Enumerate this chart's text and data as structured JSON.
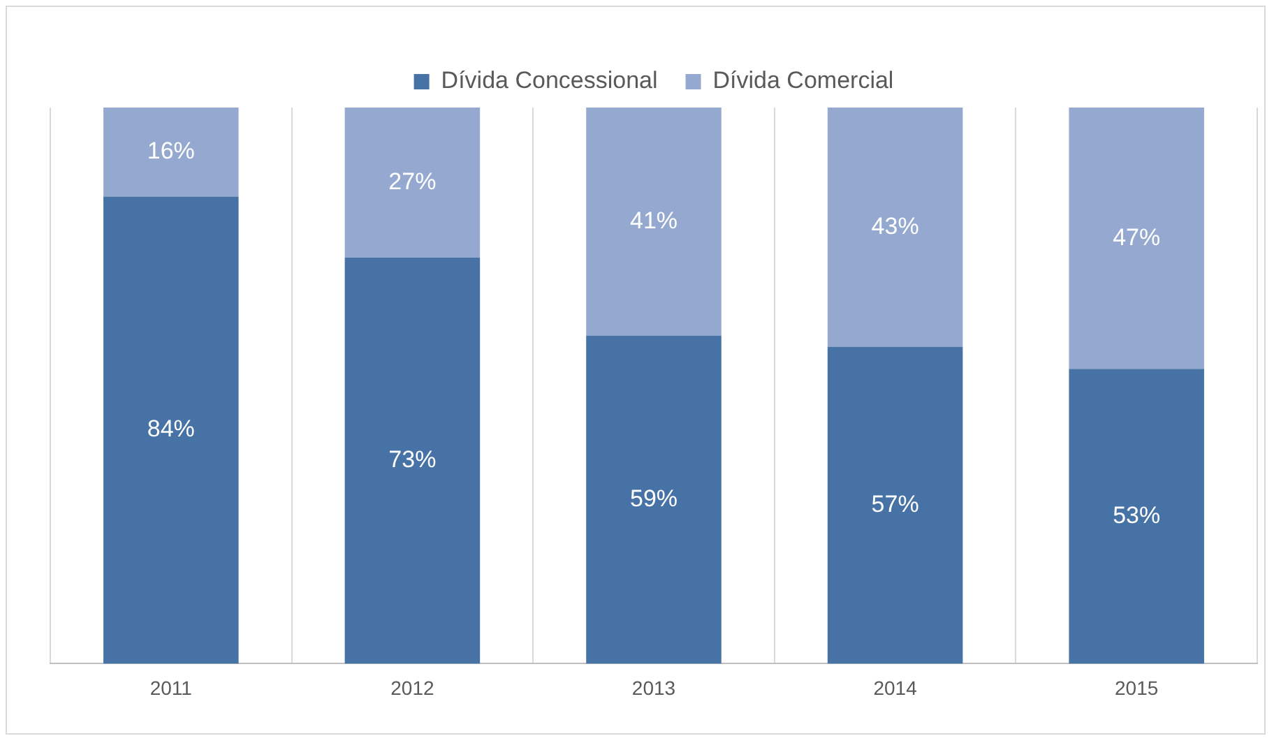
{
  "chart_data": {
    "type": "bar",
    "stacked": true,
    "categories": [
      "2011",
      "2012",
      "2013",
      "2014",
      "2015"
    ],
    "series": [
      {
        "name": "Dívida Concessional",
        "color": "#4672a6",
        "values": [
          84,
          73,
          59,
          57,
          53
        ],
        "value_labels": [
          "84%",
          "73%",
          "59%",
          "57%",
          "53%"
        ]
      },
      {
        "name": "Dívida Comercial",
        "color": "#95a9d0",
        "values": [
          16,
          27,
          41,
          43,
          47
        ],
        "value_labels": [
          "16%",
          "27%",
          "41%",
          "43%",
          "47%"
        ]
      }
    ],
    "grid": "x",
    "legend": "top"
  }
}
